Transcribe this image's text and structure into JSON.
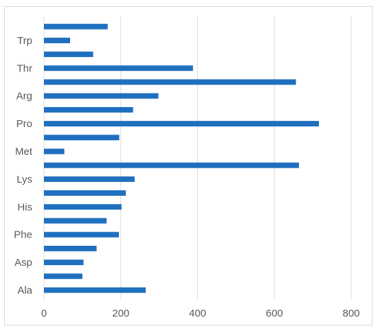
{
  "chart_data": {
    "type": "bar",
    "orientation": "horizontal",
    "categories": [
      "Ala",
      "",
      "Asp",
      "",
      "Phe",
      "",
      "His",
      "",
      "Lys",
      "",
      "Met",
      "",
      "Pro",
      "",
      "Arg",
      "",
      "Thr",
      "",
      "Trp",
      ""
    ],
    "values": [
      265,
      100,
      103,
      137,
      195,
      163,
      202,
      213,
      236,
      664,
      53,
      196,
      716,
      232,
      298,
      656,
      388,
      128,
      68,
      166
    ],
    "title": "",
    "xlabel": "",
    "ylabel": "",
    "xlim": [
      0,
      800
    ],
    "xticks": [
      "0",
      "200",
      "400",
      "600",
      "800"
    ],
    "grid": "vertical",
    "legend": "none",
    "bar_color": "#1f6fbf",
    "grid_color": "#d9d9d9",
    "label_color": "#595959"
  }
}
